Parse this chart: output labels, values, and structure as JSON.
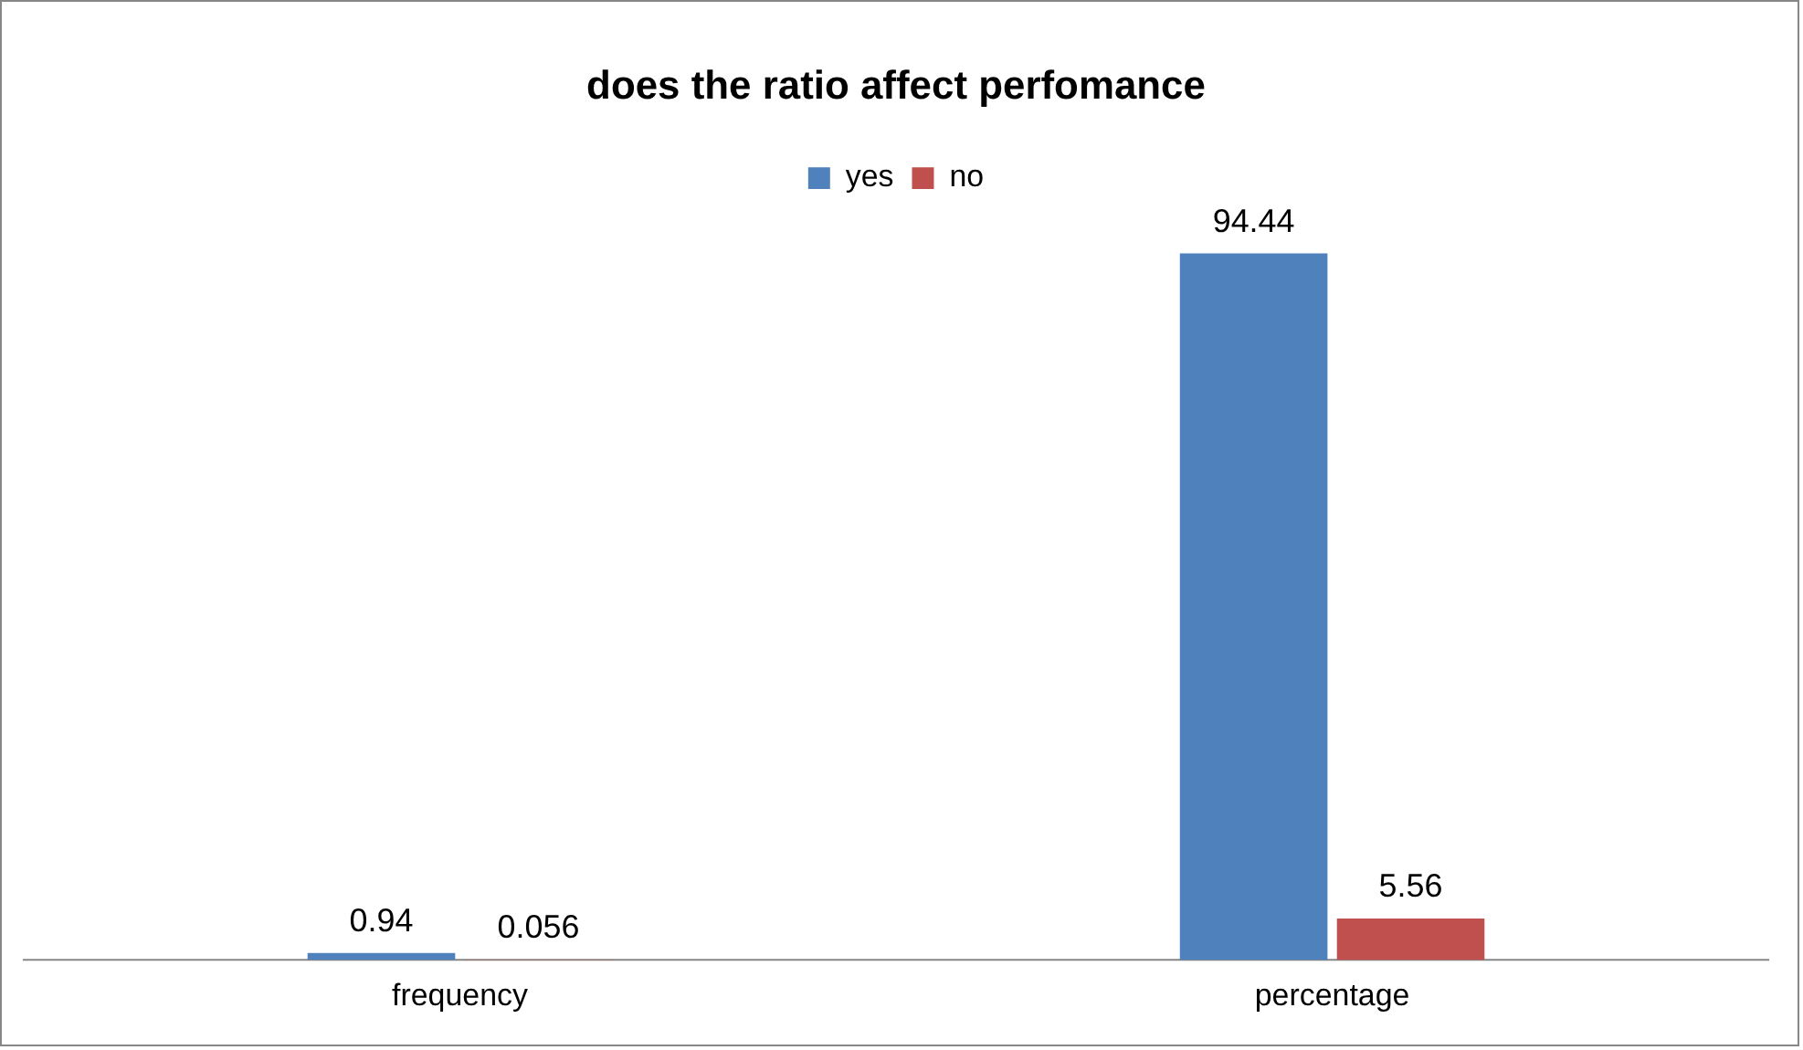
{
  "chart_data": {
    "type": "bar",
    "title": "does the ratio affect perfomance",
    "categories": [
      "frequency",
      "percentage"
    ],
    "series": [
      {
        "name": "yes",
        "color": "#4f81bd",
        "values": [
          0.94,
          94.44
        ]
      },
      {
        "name": "no",
        "color": "#c0504d",
        "values": [
          0.056,
          5.56
        ]
      }
    ],
    "data_labels": true,
    "legend": "top",
    "grid": false
  }
}
